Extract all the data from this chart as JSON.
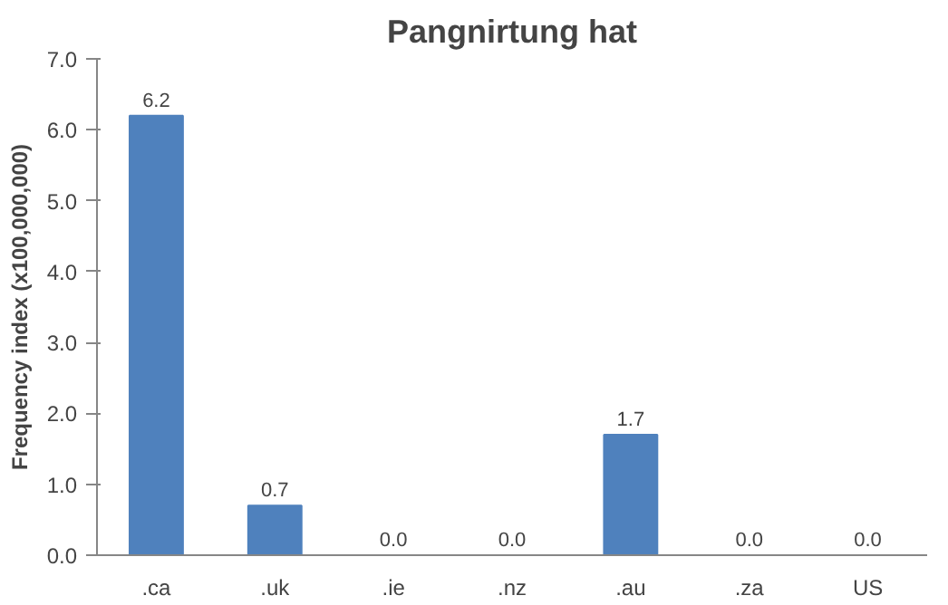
{
  "chart_data": {
    "type": "bar",
    "title": "Pangnirtung hat",
    "ylabel": "Frequency index (x100,000,000)",
    "categories": [
      ".ca",
      ".uk",
      ".ie",
      ".nz",
      ".au",
      ".za",
      "US"
    ],
    "values": [
      6.2,
      0.7,
      0,
      0,
      1.7,
      0,
      0
    ],
    "value_labels": [
      "6.2",
      "0.7",
      "0.0",
      "0.0",
      "1.7",
      "0.0",
      "0.0"
    ],
    "color": "#4f81bd",
    "ylim": [
      0,
      7
    ],
    "yticks": [
      {
        "value": 0,
        "label": "0.0"
      },
      {
        "value": 1,
        "label": "1.0"
      },
      {
        "value": 2,
        "label": "2.0"
      },
      {
        "value": 3,
        "label": "3.0"
      },
      {
        "value": 4,
        "label": "4.0"
      },
      {
        "value": 5,
        "label": "5.0"
      },
      {
        "value": 6,
        "label": "6.0"
      },
      {
        "value": 7,
        "label": "7.0"
      }
    ],
    "grid": false
  }
}
